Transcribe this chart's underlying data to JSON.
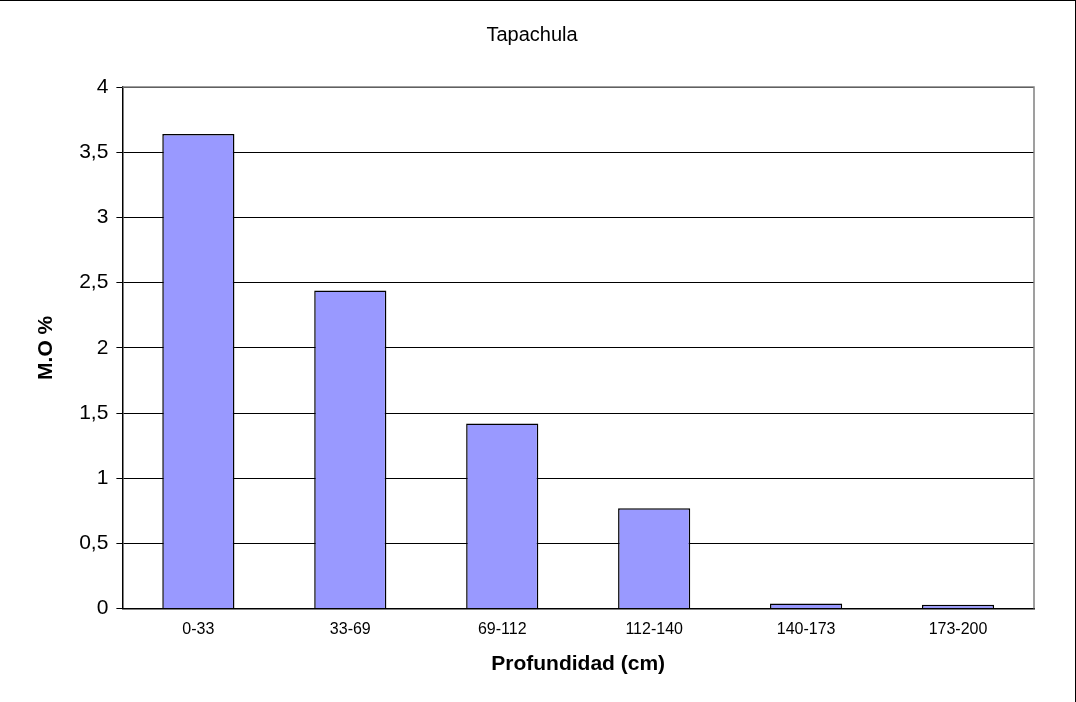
{
  "chart_data": {
    "type": "bar",
    "title": "Tapachula",
    "xlabel": "Profundidad (cm)",
    "ylabel": "M.O %",
    "categories": [
      "0-33",
      "33-69",
      "69-112",
      "112-140",
      "140-173",
      "173-200"
    ],
    "values": [
      3.64,
      2.44,
      1.42,
      0.77,
      0.04,
      0.03
    ],
    "color": "#9999ff",
    "ylim": [
      0,
      4
    ],
    "yticks": [
      0,
      {
        "value": 0.5,
        "label": "0,5"
      },
      1,
      {
        "value": 1.5,
        "label": "1,5"
      },
      2,
      {
        "value": 2.5,
        "label": "2,5"
      },
      3,
      {
        "value": 3.5,
        "label": "3,5"
      },
      4
    ],
    "grid": "y",
    "legend": false
  }
}
